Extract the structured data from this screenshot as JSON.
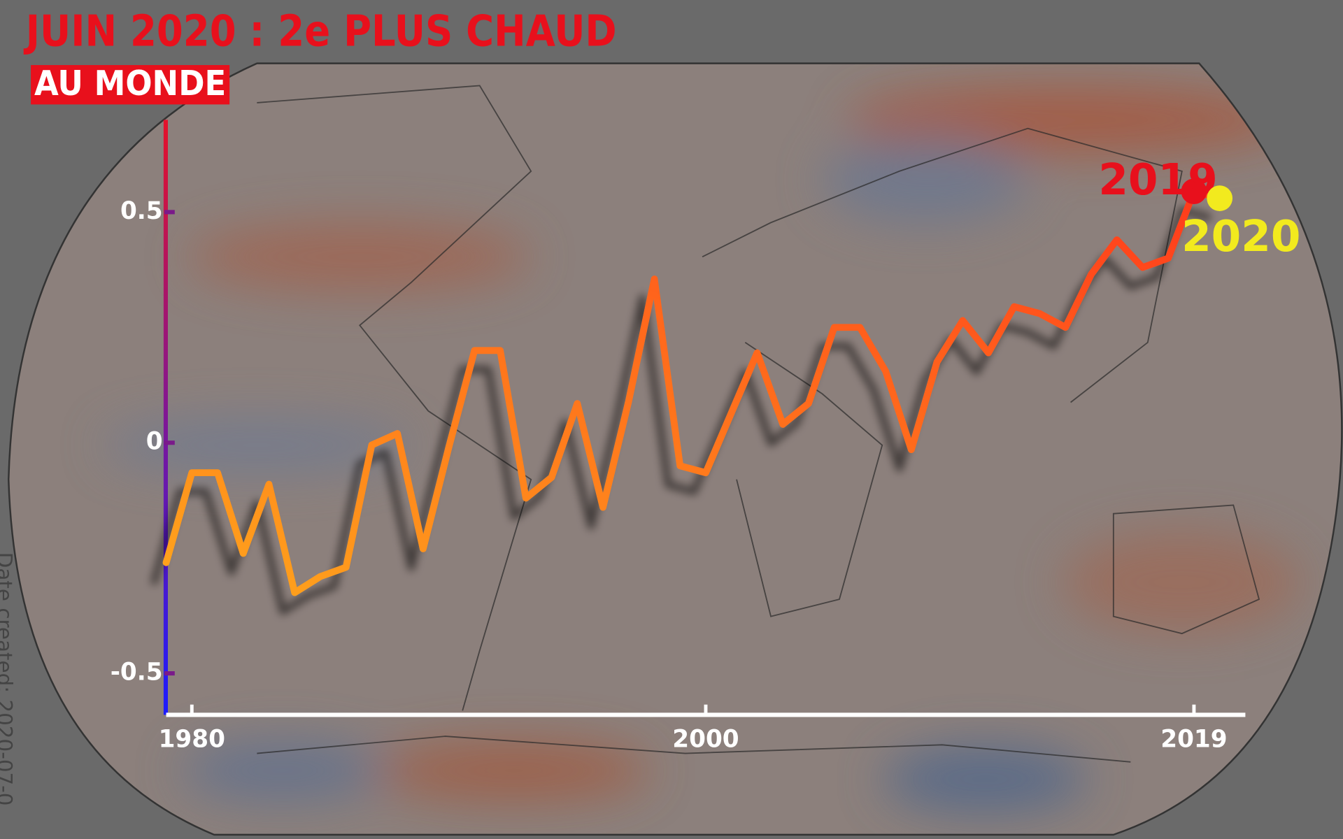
{
  "chart_data": {
    "type": "line",
    "title": "JUIN 2020 : 2e PLUS CHAUD",
    "subtitle": "AU MONDE",
    "footnote": "Date created: 2020-07-0",
    "x": [
      1979,
      1980,
      1981,
      1982,
      1983,
      1984,
      1985,
      1986,
      1987,
      1988,
      1989,
      1990,
      1991,
      1992,
      1993,
      1994,
      1995,
      1996,
      1997,
      1998,
      1999,
      2000,
      2001,
      2002,
      2003,
      2004,
      2005,
      2006,
      2007,
      2008,
      2009,
      2010,
      2011,
      2012,
      2013,
      2014,
      2015,
      2016,
      2017,
      2018,
      2019,
      2020
    ],
    "values": [
      -0.26,
      -0.065,
      -0.065,
      -0.24,
      -0.09,
      -0.325,
      -0.29,
      -0.27,
      -0.005,
      0.02,
      -0.23,
      -0.01,
      0.2,
      0.2,
      -0.12,
      -0.075,
      0.085,
      -0.14,
      0.09,
      0.355,
      -0.05,
      -0.065,
      0.065,
      0.195,
      0.04,
      0.085,
      0.25,
      0.25,
      0.155,
      -0.015,
      0.175,
      0.265,
      0.195,
      0.295,
      0.28,
      0.25,
      0.365,
      0.44,
      0.38,
      0.4,
      0.545,
      0.53
    ],
    "line_colors": [
      "#ffa51c",
      "#ff3a1c"
    ],
    "axis_colors": [
      "#e4122a",
      "#1b1bff"
    ],
    "annotations": [
      {
        "text": "2019",
        "color": "#e8101c"
      },
      {
        "text": "2020",
        "color": "#f2ea1e"
      }
    ],
    "xlim": [
      1979,
      2021
    ],
    "xticks": [
      1980,
      2000,
      2019
    ],
    "ylim": [
      -0.59,
      0.7
    ],
    "yticks": [
      -0.5,
      0,
      0.5
    ]
  }
}
